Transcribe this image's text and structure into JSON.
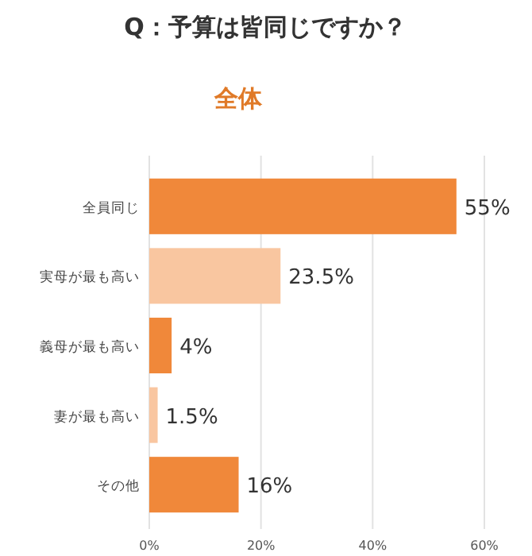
{
  "chart_data": {
    "type": "bar",
    "orientation": "horizontal",
    "title": "Q：予算は皆同じですか？",
    "subtitle": "全体",
    "categories": [
      "全員同じ",
      "実母が最も高い",
      "義母が最も高い",
      "妻が最も高い",
      "その他"
    ],
    "values": [
      55,
      23.5,
      4,
      1.5,
      16
    ],
    "colors": [
      "#f0883a",
      "#f9c6a0",
      "#f0883a",
      "#f9c6a0",
      "#f0883a"
    ],
    "value_labels": [
      "55%",
      "23.5%",
      "4%",
      "1.5%",
      "16%"
    ],
    "xlim": [
      0,
      60
    ],
    "xticks": [
      {
        "value": 0,
        "label": "0%"
      },
      {
        "value": 20,
        "label": "20%"
      },
      {
        "value": 40,
        "label": "40%"
      },
      {
        "value": 60,
        "label": "60%"
      }
    ],
    "grid": "x"
  }
}
